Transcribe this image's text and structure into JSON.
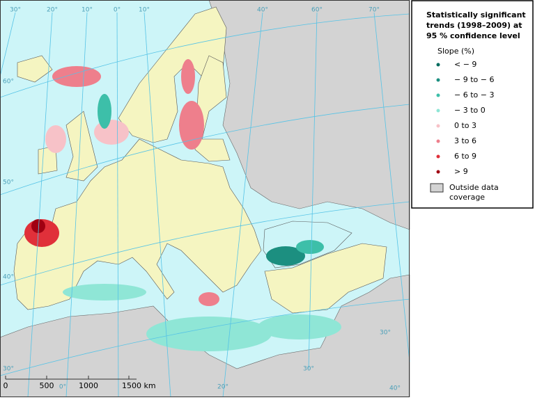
{
  "map": {
    "graticule_labels": [
      "30°",
      "20°",
      "10°",
      "0°",
      "10°",
      "40°",
      "60°",
      "70°",
      "60°",
      "50°",
      "40°",
      "30°",
      "0°",
      "20°",
      "30°",
      "40°",
      "30°"
    ],
    "scale_bar": [
      "0",
      "500",
      "1000",
      "1500 km"
    ]
  },
  "legend": {
    "title": [
      "Statistically significant",
      "trends (1998–2009) at",
      "95 % confidence level"
    ],
    "subtitle": "Slope (%)",
    "items": [
      {
        "label": "< − 9",
        "color": "#006b5e"
      },
      {
        "label": "− 9 to − 6",
        "color": "#1c8f80"
      },
      {
        "label": "− 6 to − 3",
        "color": "#3dbfa9"
      },
      {
        "label": "− 3 to 0",
        "color": "#8fe6d6"
      },
      {
        "label": "0 to 3",
        "color": "#f7c2c8"
      },
      {
        "label": "3 to 6",
        "color": "#ee7f8c"
      },
      {
        "label": "6 to 9",
        "color": "#e0303a"
      },
      {
        "label": "> 9",
        "color": "#a00012"
      }
    ],
    "outside": [
      "Outside data",
      "coverage"
    ]
  }
}
